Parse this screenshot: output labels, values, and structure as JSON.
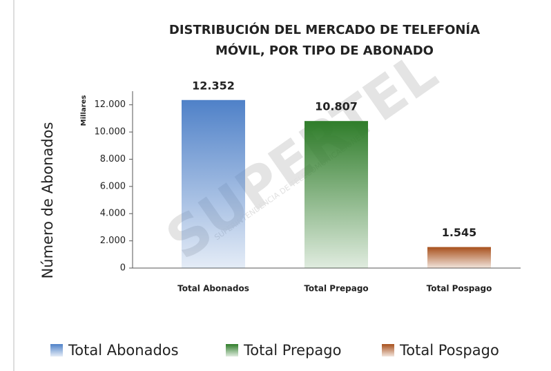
{
  "chart_data": {
    "type": "bar",
    "title": [
      "DISTRIBUCIÓN DEL MERCADO DE TELEFONÍA",
      "MÓVIL,  POR TIPO DE ABONADO"
    ],
    "y_label": "Número de Abonados",
    "y_unit": "Millares",
    "watermark": "SUPERTEL",
    "watermark_subtitle": "SUPERINTENDENCIA DE TELECOMUNICACIONES",
    "categories": [
      "Total Abonados",
      "Total Prepago",
      "Total Pospago"
    ],
    "values": [
      12352,
      10807,
      1545
    ],
    "value_labels": [
      "12.352",
      "10.807",
      "1.545"
    ],
    "colors": [
      "#4f81c8",
      "#2f7d2a",
      "#a8501c"
    ],
    "ylim": [
      0,
      13000
    ],
    "yticks": [
      0,
      {
        "value": 2000,
        "label": "2.000"
      },
      {
        "value": 4000,
        "label": "4.000"
      },
      {
        "value": 6000,
        "label": "6.000"
      },
      {
        "value": 8000,
        "label": "8.000"
      },
      {
        "value": 10000,
        "label": "10.000"
      },
      {
        "value": 12000,
        "label": "12.000"
      }
    ],
    "legend": "bottom"
  }
}
